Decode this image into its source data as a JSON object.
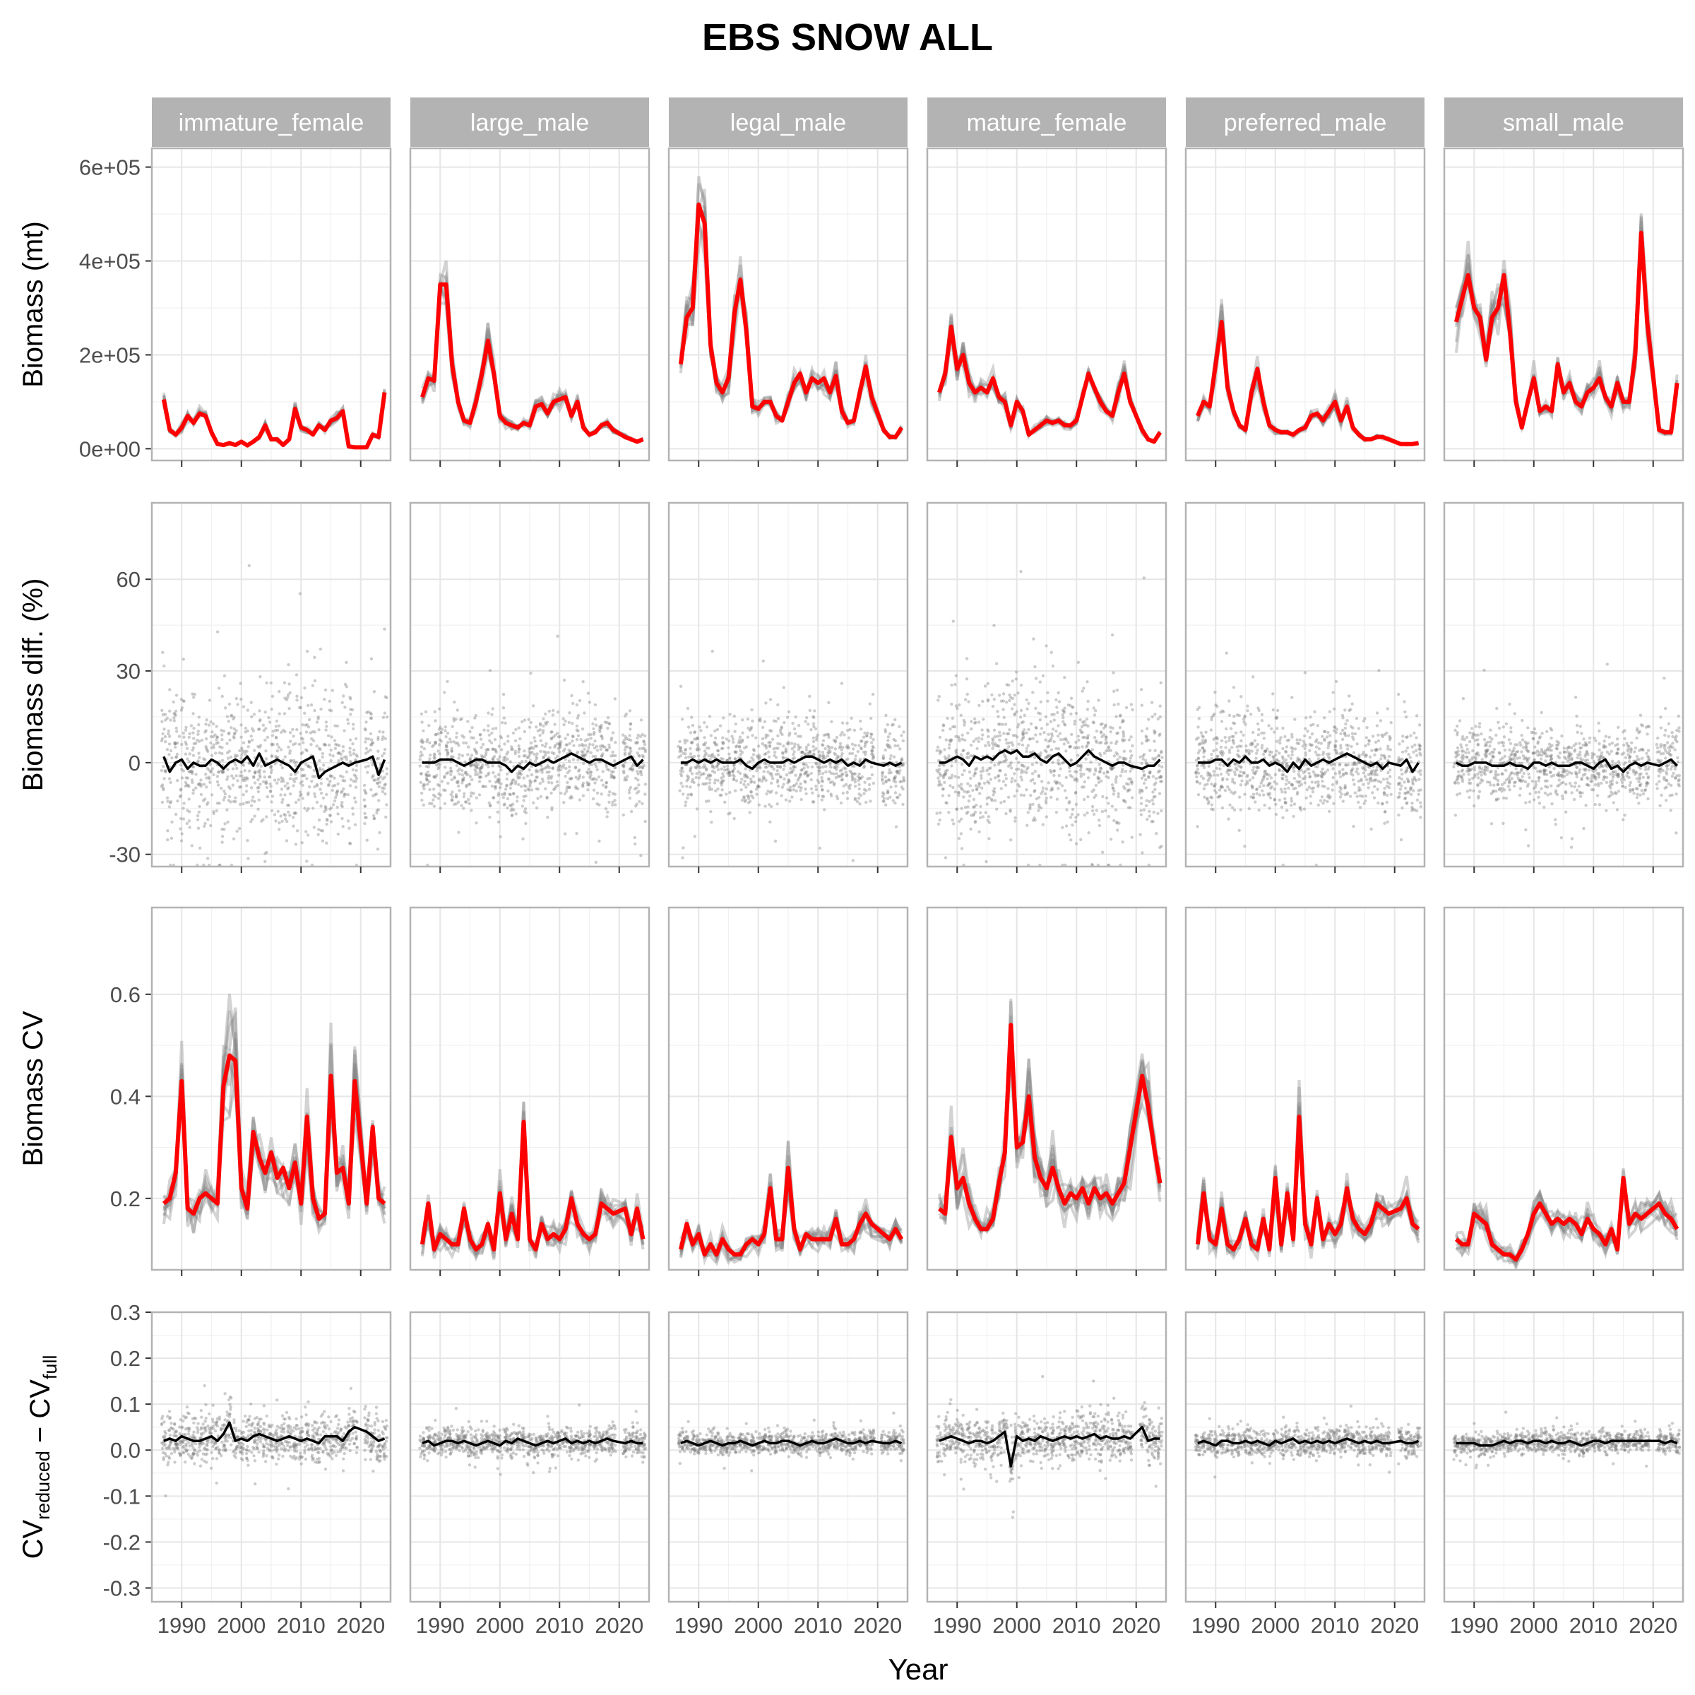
{
  "chart_data": {
    "type": "line",
    "title": "EBS SNOW ALL",
    "xlabel": "Year",
    "x_ticks": [
      1990,
      2000,
      2010,
      2020
    ],
    "xlim": [
      1985,
      2025
    ],
    "facets": [
      "immature_female",
      "large_male",
      "legal_male",
      "mature_female",
      "preferred_male",
      "small_male"
    ],
    "years": [
      1987,
      1988,
      1989,
      1990,
      1991,
      1992,
      1993,
      1994,
      1995,
      1996,
      1997,
      1998,
      1999,
      2000,
      2001,
      2002,
      2003,
      2004,
      2005,
      2006,
      2007,
      2008,
      2009,
      2010,
      2011,
      2012,
      2013,
      2014,
      2015,
      2016,
      2017,
      2018,
      2019,
      2021,
      2022,
      2023,
      2024
    ],
    "rows": [
      {
        "id": "biomass",
        "ylabel": "Biomass (mt)",
        "yticks": [
          0,
          200000,
          400000,
          600000
        ],
        "ytick_labels": [
          "0e+00",
          "2e+05",
          "4e+05",
          "6e+05"
        ],
        "ylim": [
          -25000,
          640000
        ],
        "series_note": "red line = full design estimate; grey lines = reduced-design replicates",
        "panels": [
          [
            105000,
            40000,
            30000,
            45000,
            70000,
            55000,
            75000,
            70000,
            35000,
            10000,
            8000,
            12000,
            8000,
            15000,
            7000,
            15000,
            25000,
            50000,
            20000,
            20000,
            8000,
            20000,
            85000,
            45000,
            40000,
            30000,
            50000,
            40000,
            60000,
            65000,
            80000,
            5000,
            3000,
            3000,
            30000,
            25000,
            120000
          ],
          [
            110000,
            150000,
            145000,
            350000,
            350000,
            180000,
            100000,
            60000,
            55000,
            100000,
            160000,
            230000,
            160000,
            70000,
            55000,
            50000,
            45000,
            55000,
            50000,
            90000,
            95000,
            75000,
            100000,
            105000,
            110000,
            70000,
            100000,
            45000,
            30000,
            35000,
            50000,
            55000,
            40000,
            25000,
            20000,
            15000,
            20000
          ],
          [
            180000,
            280000,
            300000,
            520000,
            480000,
            220000,
            140000,
            120000,
            150000,
            290000,
            360000,
            250000,
            90000,
            85000,
            100000,
            100000,
            70000,
            60000,
            100000,
            140000,
            160000,
            120000,
            150000,
            140000,
            150000,
            120000,
            155000,
            80000,
            55000,
            60000,
            120000,
            175000,
            110000,
            40000,
            25000,
            25000,
            45000
          ],
          [
            120000,
            160000,
            260000,
            170000,
            200000,
            140000,
            120000,
            130000,
            120000,
            150000,
            110000,
            100000,
            50000,
            100000,
            80000,
            30000,
            40000,
            50000,
            60000,
            55000,
            60000,
            50000,
            50000,
            60000,
            110000,
            160000,
            130000,
            100000,
            80000,
            70000,
            120000,
            160000,
            100000,
            40000,
            20000,
            15000,
            35000
          ],
          [
            70000,
            100000,
            90000,
            180000,
            270000,
            130000,
            80000,
            50000,
            40000,
            120000,
            170000,
            100000,
            50000,
            40000,
            35000,
            35000,
            30000,
            40000,
            45000,
            70000,
            75000,
            60000,
            80000,
            100000,
            60000,
            90000,
            45000,
            30000,
            20000,
            20000,
            25000,
            25000,
            20000,
            10000,
            10000,
            10000,
            12000
          ],
          [
            270000,
            320000,
            370000,
            300000,
            280000,
            190000,
            280000,
            300000,
            370000,
            250000,
            100000,
            45000,
            100000,
            150000,
            80000,
            90000,
            80000,
            180000,
            120000,
            140000,
            100000,
            90000,
            120000,
            130000,
            150000,
            110000,
            90000,
            140000,
            100000,
            100000,
            200000,
            460000,
            270000,
            40000,
            35000,
            35000,
            140000
          ]
        ]
      },
      {
        "id": "biomass_diff",
        "ylabel": "Biomass diff. (%)",
        "yticks": [
          -30,
          0,
          30,
          60
        ],
        "ytick_labels": [
          "-30",
          "0",
          "30",
          "60"
        ],
        "ylim": [
          -34,
          85
        ],
        "series_note": "grey points = replicate differences; black line = mean",
        "point_spread": [
          12,
          8,
          7,
          12,
          8,
          6
        ],
        "panels": [
          [
            2,
            -3,
            0,
            1,
            -2,
            0,
            -1,
            -1,
            1,
            0,
            -2,
            0,
            1,
            0,
            2,
            -1,
            3,
            -1,
            0,
            1,
            0,
            -1,
            -3,
            0,
            1,
            2,
            -5,
            -3,
            -2,
            -1,
            0,
            -1,
            0,
            1,
            2,
            -4,
            1
          ],
          [
            0,
            0,
            0,
            1,
            1,
            1,
            0,
            -1,
            0,
            1,
            1,
            0,
            0,
            0,
            -1,
            -3,
            -1,
            -2,
            0,
            -1,
            0,
            1,
            0,
            1,
            2,
            3,
            2,
            1,
            0,
            1,
            1,
            0,
            -1,
            1,
            2,
            -1,
            1
          ],
          [
            0,
            0,
            1,
            0,
            1,
            0,
            1,
            0,
            0,
            0,
            1,
            -1,
            -2,
            0,
            1,
            0,
            0,
            0,
            1,
            0,
            1,
            2,
            2,
            1,
            0,
            1,
            0,
            1,
            -1,
            0,
            -1,
            1,
            0,
            -1,
            0,
            -1,
            0
          ],
          [
            0,
            0,
            1,
            2,
            1,
            -1,
            2,
            1,
            2,
            1,
            3,
            4,
            3,
            4,
            2,
            2,
            3,
            1,
            0,
            2,
            3,
            1,
            -1,
            0,
            2,
            4,
            2,
            1,
            0,
            -1,
            0,
            0,
            -1,
            -2,
            -1,
            -1,
            1
          ],
          [
            0,
            0,
            0,
            1,
            1,
            -1,
            1,
            0,
            2,
            0,
            0,
            1,
            -1,
            0,
            -1,
            -3,
            0,
            -2,
            1,
            -1,
            0,
            1,
            0,
            1,
            2,
            3,
            2,
            1,
            0,
            -1,
            0,
            -2,
            0,
            -1,
            1,
            -3,
            0
          ],
          [
            0,
            -1,
            -1,
            0,
            0,
            0,
            -1,
            -1,
            -1,
            0,
            -1,
            -1,
            -2,
            0,
            0,
            -1,
            0,
            -1,
            -1,
            -1,
            0,
            0,
            -1,
            -2,
            0,
            1,
            -2,
            -1,
            -3,
            -1,
            0,
            -1,
            0,
            -1,
            0,
            1,
            -1
          ]
        ]
      },
      {
        "id": "biomass_cv",
        "ylabel": "Biomass CV",
        "yticks": [
          0.2,
          0.4,
          0.6
        ],
        "ytick_labels": [
          "0.2",
          "0.4",
          "0.6"
        ],
        "ylim": [
          0.06,
          0.77
        ],
        "series_note": "red line = full design CV; grey lines = reduced-design replicates",
        "panels": [
          [
            0.19,
            0.2,
            0.25,
            0.43,
            0.18,
            0.17,
            0.2,
            0.21,
            0.2,
            0.19,
            0.42,
            0.48,
            0.47,
            0.22,
            0.18,
            0.33,
            0.28,
            0.25,
            0.29,
            0.24,
            0.26,
            0.22,
            0.27,
            0.19,
            0.36,
            0.2,
            0.16,
            0.17,
            0.44,
            0.25,
            0.26,
            0.19,
            0.43,
            0.19,
            0.34,
            0.2,
            0.19
          ],
          [
            0.11,
            0.19,
            0.1,
            0.13,
            0.12,
            0.11,
            0.11,
            0.18,
            0.12,
            0.1,
            0.11,
            0.15,
            0.1,
            0.21,
            0.12,
            0.17,
            0.12,
            0.35,
            0.12,
            0.1,
            0.15,
            0.12,
            0.13,
            0.12,
            0.14,
            0.2,
            0.15,
            0.13,
            0.12,
            0.13,
            0.19,
            0.18,
            0.17,
            0.18,
            0.13,
            0.18,
            0.12
          ],
          [
            0.1,
            0.15,
            0.11,
            0.13,
            0.09,
            0.11,
            0.09,
            0.12,
            0.1,
            0.09,
            0.09,
            0.11,
            0.12,
            0.11,
            0.13,
            0.22,
            0.12,
            0.12,
            0.26,
            0.14,
            0.1,
            0.13,
            0.12,
            0.12,
            0.12,
            0.12,
            0.16,
            0.11,
            0.11,
            0.12,
            0.15,
            0.17,
            0.15,
            0.13,
            0.12,
            0.14,
            0.12
          ],
          [
            0.18,
            0.17,
            0.32,
            0.22,
            0.24,
            0.19,
            0.16,
            0.14,
            0.14,
            0.16,
            0.23,
            0.29,
            0.54,
            0.3,
            0.31,
            0.4,
            0.28,
            0.24,
            0.22,
            0.26,
            0.22,
            0.19,
            0.21,
            0.2,
            0.22,
            0.19,
            0.22,
            0.2,
            0.21,
            0.19,
            0.21,
            0.23,
            0.3,
            0.44,
            0.38,
            0.3,
            0.23
          ],
          [
            0.11,
            0.21,
            0.12,
            0.11,
            0.18,
            0.11,
            0.1,
            0.12,
            0.16,
            0.11,
            0.1,
            0.16,
            0.1,
            0.24,
            0.11,
            0.21,
            0.12,
            0.36,
            0.15,
            0.11,
            0.2,
            0.12,
            0.15,
            0.13,
            0.15,
            0.22,
            0.16,
            0.14,
            0.13,
            0.15,
            0.19,
            0.18,
            0.17,
            0.18,
            0.2,
            0.15,
            0.14
          ],
          [
            0.12,
            0.11,
            0.11,
            0.17,
            0.16,
            0.15,
            0.11,
            0.1,
            0.09,
            0.09,
            0.08,
            0.1,
            0.13,
            0.17,
            0.19,
            0.17,
            0.15,
            0.16,
            0.15,
            0.16,
            0.15,
            0.13,
            0.16,
            0.14,
            0.13,
            0.11,
            0.14,
            0.1,
            0.24,
            0.15,
            0.17,
            0.16,
            0.17,
            0.19,
            0.17,
            0.16,
            0.14
          ]
        ]
      },
      {
        "id": "cv_diff",
        "ylabel": "CVreduced − CVfull",
        "ylabel_parts": {
          "a": "CV",
          "a_sub": "reduced",
          "op": " − ",
          "b": "CV",
          "b_sub": "full"
        },
        "yticks": [
          -0.3,
          -0.2,
          -0.1,
          0.0,
          0.1,
          0.2,
          0.3
        ],
        "ytick_labels": [
          "-0.3",
          "-0.2",
          "-0.1",
          "0.0",
          "0.1",
          "0.2",
          "0.3"
        ],
        "ylim": [
          -0.33,
          0.3
        ],
        "series_note": "grey points = replicate CV differences; black line = mean",
        "point_spread": [
          0.025,
          0.015,
          0.012,
          0.025,
          0.015,
          0.012
        ],
        "panels": [
          [
            0.02,
            0.025,
            0.02,
            0.03,
            0.025,
            0.02,
            0.02,
            0.025,
            0.03,
            0.02,
            0.035,
            0.06,
            0.02,
            0.025,
            0.02,
            0.03,
            0.035,
            0.03,
            0.025,
            0.02,
            0.025,
            0.03,
            0.025,
            0.02,
            0.025,
            0.02,
            0.015,
            0.03,
            0.03,
            0.03,
            0.02,
            0.04,
            0.05,
            0.04,
            0.03,
            0.02,
            0.025
          ],
          [
            0.015,
            0.02,
            0.01,
            0.015,
            0.02,
            0.02,
            0.015,
            0.02,
            0.015,
            0.01,
            0.015,
            0.02,
            0.015,
            0.01,
            0.02,
            0.015,
            0.025,
            0.02,
            0.015,
            0.01,
            0.015,
            0.02,
            0.015,
            0.02,
            0.025,
            0.015,
            0.02,
            0.015,
            0.02,
            0.015,
            0.02,
            0.025,
            0.02,
            0.015,
            0.02,
            0.015,
            0.015
          ],
          [
            0.015,
            0.02,
            0.015,
            0.01,
            0.015,
            0.02,
            0.015,
            0.01,
            0.015,
            0.015,
            0.02,
            0.015,
            0.01,
            0.015,
            0.02,
            0.015,
            0.015,
            0.02,
            0.02,
            0.015,
            0.01,
            0.015,
            0.02,
            0.015,
            0.015,
            0.02,
            0.025,
            0.02,
            0.015,
            0.015,
            0.02,
            0.015,
            0.02,
            0.015,
            0.015,
            0.02,
            0.015
          ],
          [
            0.02,
            0.025,
            0.03,
            0.025,
            0.02,
            0.015,
            0.02,
            0.02,
            0.015,
            0.02,
            0.03,
            0.04,
            -0.035,
            0.03,
            0.02,
            0.025,
            0.02,
            0.03,
            0.025,
            0.02,
            0.025,
            0.03,
            0.025,
            0.03,
            0.025,
            0.03,
            0.035,
            0.025,
            0.03,
            0.025,
            0.025,
            0.03,
            0.025,
            0.05,
            0.02,
            0.025,
            0.025
          ],
          [
            0.015,
            0.02,
            0.015,
            0.01,
            0.02,
            0.02,
            0.015,
            0.015,
            0.02,
            0.015,
            0.02,
            0.015,
            0.01,
            0.02,
            0.015,
            0.02,
            0.025,
            0.015,
            0.02,
            0.015,
            0.02,
            0.015,
            0.02,
            0.015,
            0.02,
            0.025,
            0.02,
            0.015,
            0.02,
            0.015,
            0.02,
            0.015,
            0.015,
            0.02,
            0.015,
            0.015,
            0.02
          ],
          [
            0.015,
            0.015,
            0.015,
            0.015,
            0.01,
            0.01,
            0.01,
            0.015,
            0.02,
            0.015,
            0.02,
            0.02,
            0.015,
            0.02,
            0.02,
            0.015,
            0.02,
            0.015,
            0.015,
            0.02,
            0.015,
            0.01,
            0.015,
            0.02,
            0.02,
            0.015,
            0.02,
            0.02,
            0.02,
            0.02,
            0.02,
            0.02,
            0.02,
            0.02,
            0.015,
            0.02,
            0.015
          ]
        ]
      }
    ],
    "colors": {
      "full_line": "#ff0000",
      "replicate_lines": "#808080",
      "points": "#7f7f7f",
      "mean_line": "#000000",
      "strip_fill": "#b3b3b3",
      "strip_text": "#ffffff",
      "panel_border": "#b3b3b3",
      "grid": "#e6e6e6"
    }
  }
}
